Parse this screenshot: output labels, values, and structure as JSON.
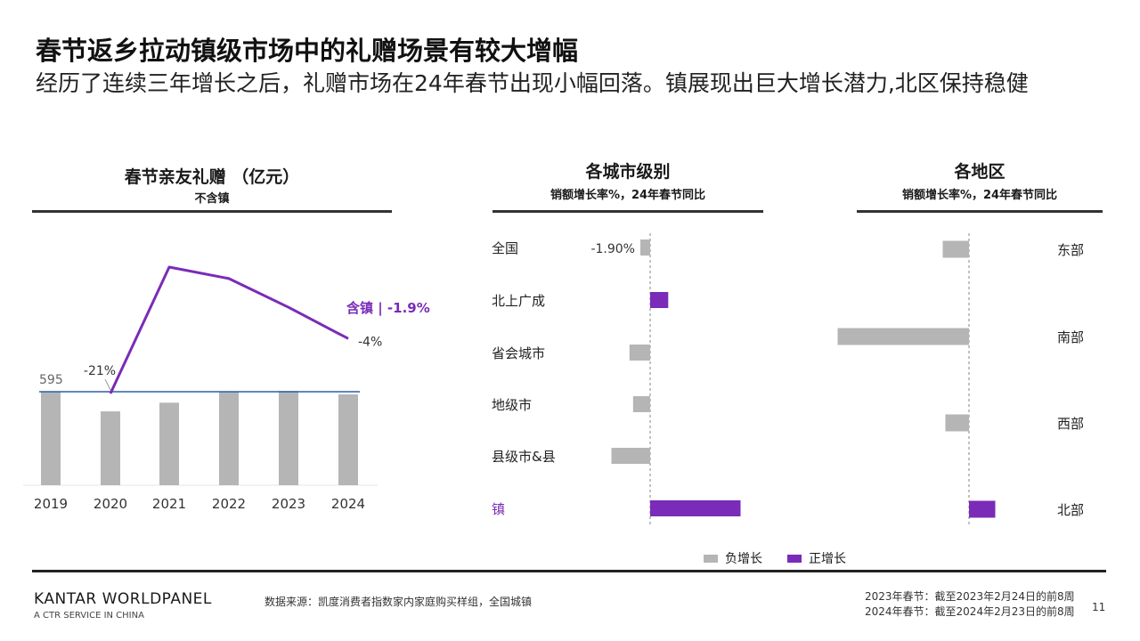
{
  "header": {
    "title": "春节返乡拉动镇级市场中的礼赠场景有较大增幅",
    "subtitle": "经历了连续三年增长之后，礼赠市场在24年春节出现小幅回落。镇展现出巨大增长潜力,北区保持稳健"
  },
  "colors": {
    "purple": "#7a2bb8",
    "gray": "#b5b5b5",
    "blue": "#2b5ea8"
  },
  "chart_data": [
    {
      "id": "gift-trend",
      "type": "bar",
      "title": "春节亲友礼赠 （亿元）",
      "subtitle": "不含镇",
      "categories": [
        "2019",
        "2020",
        "2021",
        "2022",
        "2023",
        "2024"
      ],
      "values": [
        595,
        470,
        525,
        595,
        600,
        578
      ],
      "reference_label": "595",
      "line_series": {
        "name": "含镇",
        "x": [
          "2020",
          "2021",
          "2022",
          "2023",
          "2024"
        ],
        "values": [
          -21,
          23,
          19,
          9,
          -1.9
        ]
      },
      "annotations": {
        "first_point_label": "-21%",
        "last_point_label": "-4%",
        "series_label": "含镇 | -1.9%"
      }
    },
    {
      "id": "city-tier",
      "type": "bar",
      "orientation": "horizontal",
      "title": "各城市级别",
      "subtitle": "销额增长率%，24年春节同比",
      "categories": [
        "全国",
        "北上广成",
        "省会城市",
        "地级市",
        "县级市&县",
        "镇"
      ],
      "values": [
        -1.9,
        3.5,
        -4.0,
        -3.3,
        -7.5,
        17.5
      ],
      "data_labels": {
        "全国": "-1.90%"
      }
    },
    {
      "id": "region",
      "type": "bar",
      "orientation": "horizontal",
      "title": "各地区",
      "subtitle": "销额增长率%，24年春节同比",
      "categories": [
        "东部",
        "南部",
        "西部",
        "北部"
      ],
      "values": [
        -5,
        -25,
        -4.5,
        5
      ]
    }
  ],
  "legend": {
    "negative": "负增长",
    "positive": "正增长"
  },
  "footer": {
    "brand": "KANTAR WORLDPANEL",
    "brand_sub": "A CTR SERVICE IN CHINA",
    "source": "数据来源：凯度消费者指数家内家庭购买样组，全国城镇",
    "note_2023": "2023年春节：截至2023年2月24日的前8周",
    "note_2024": "2024年春节：截至2024年2月23日的前8周",
    "page_number": "11"
  }
}
